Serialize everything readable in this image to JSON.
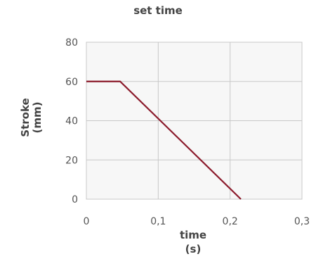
{
  "chart_data": {
    "type": "line",
    "title": "set time",
    "ylabel_lines": [
      "Stroke",
      "(mm)"
    ],
    "xlabel_lines": [
      "time",
      "(s)"
    ],
    "xlim": [
      0,
      0.3
    ],
    "ylim": [
      0,
      80
    ],
    "x_ticks": [
      "0",
      "0,1",
      "0,2",
      "0,3"
    ],
    "x_tick_values": [
      0,
      0.1,
      0.2,
      0.3
    ],
    "y_ticks": [
      "0",
      "20",
      "40",
      "60",
      "80"
    ],
    "y_tick_values": [
      0,
      20,
      40,
      60,
      80
    ],
    "grid": true,
    "series": [
      {
        "x": [
          0,
          0.047,
          0.215
        ],
        "y": [
          60,
          60,
          0
        ],
        "color": "#8b1a2b"
      }
    ],
    "colors": {
      "plot_background": "#f7f7f7",
      "grid": "#c8c8c8",
      "axis_text": "#555555"
    }
  }
}
